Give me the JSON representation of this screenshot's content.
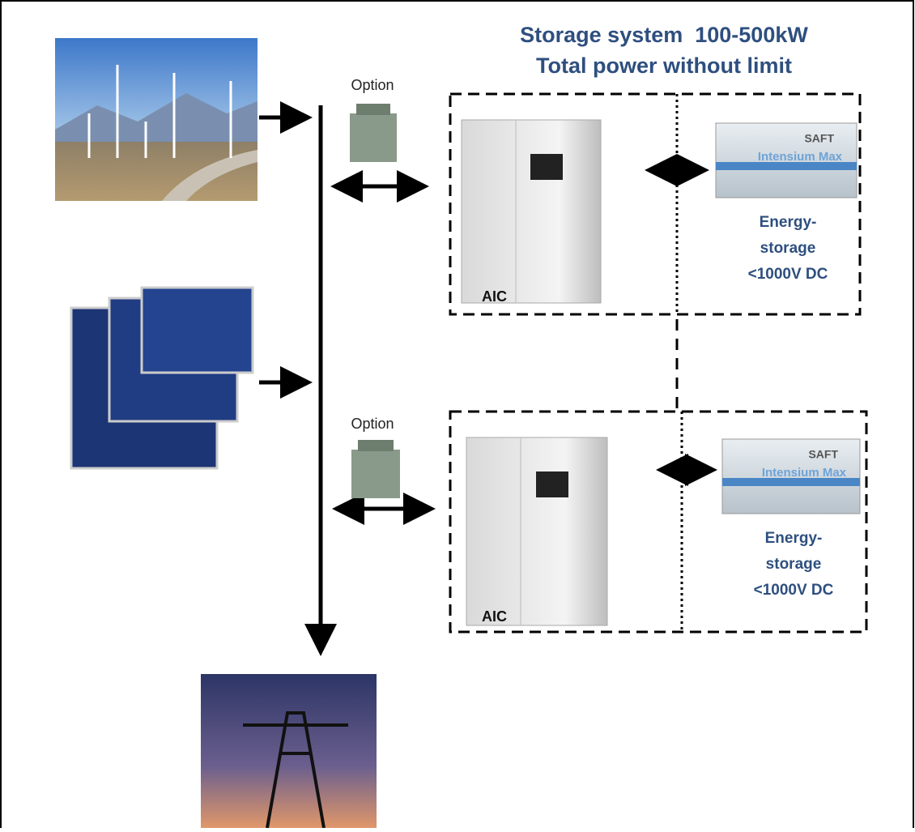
{
  "header": {
    "title_lines": [
      "Storage system  100-500kW",
      "Total power without limit"
    ]
  },
  "units": [
    {
      "option": "Option",
      "converter": "AIC",
      "container": {
        "brand": "SAFT",
        "product": "Intensium Max"
      },
      "storage": [
        "Energy-",
        "storage",
        "<1000V DC"
      ]
    },
    {
      "option": "Option",
      "converter": "AIC",
      "container": {
        "brand": "SAFT",
        "product": "Intensium Max"
      },
      "storage": [
        "Energy-",
        "storage",
        "<1000V DC"
      ]
    }
  ]
}
